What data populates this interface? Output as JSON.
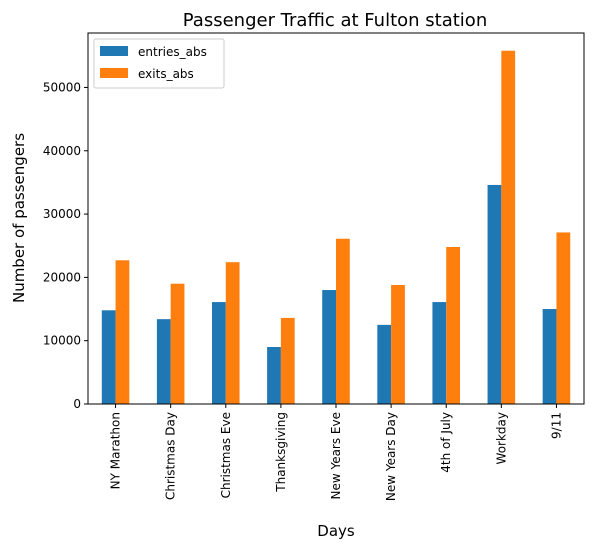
{
  "chart_data": {
    "type": "bar",
    "title": "Passenger Traffic at Fulton station",
    "xlabel": "Days",
    "ylabel": "Number of passengers",
    "categories": [
      "NY Marathon",
      "Christmas Day",
      "Christmas Eve",
      "Thanksgiving",
      "New Years Eve",
      "New Years Day",
      "4th of July",
      "Workday",
      "9/11"
    ],
    "series": [
      {
        "name": "entries_abs",
        "color": "#1f77b4",
        "values": [
          14800,
          13400,
          16100,
          9000,
          18000,
          12500,
          16100,
          34600,
          15000
        ]
      },
      {
        "name": "exits_abs",
        "color": "#ff7f0e",
        "values": [
          22700,
          19000,
          22400,
          13600,
          26100,
          18800,
          24800,
          55800,
          27100
        ]
      }
    ],
    "ylim": [
      0,
      58600
    ],
    "yticks": [
      0,
      10000,
      20000,
      30000,
      40000,
      50000
    ],
    "ytick_labels": [
      "0",
      "10000",
      "20000",
      "30000",
      "40000",
      "50000"
    ],
    "grid": false,
    "legend_position": "upper-left"
  }
}
